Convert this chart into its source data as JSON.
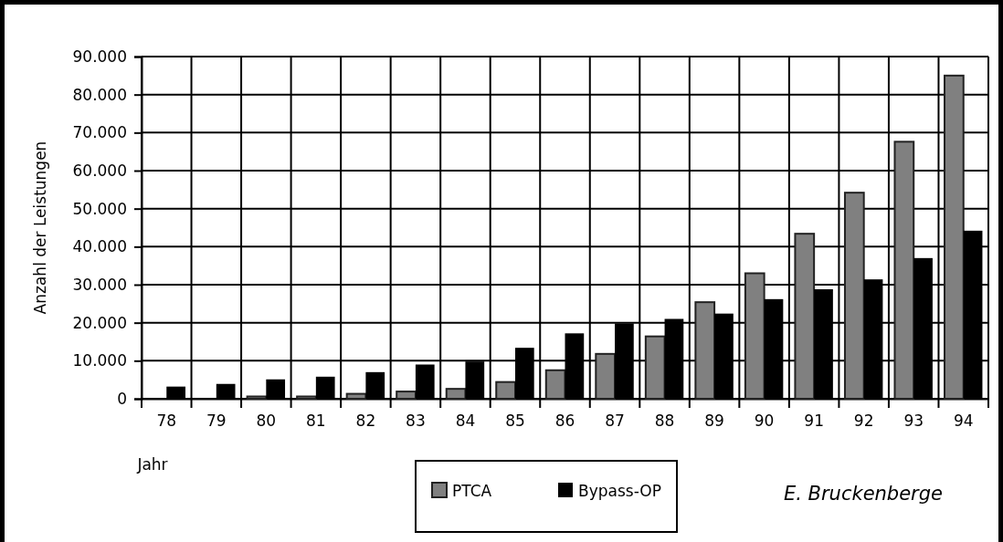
{
  "chart_data": {
    "type": "bar",
    "xlabel": "Jahr",
    "ylabel": "Anzahl der Leistungen",
    "categories": [
      "78",
      "79",
      "80",
      "81",
      "82",
      "83",
      "84",
      "85",
      "86",
      "87",
      "88",
      "89",
      "90",
      "91",
      "92",
      "93",
      "94"
    ],
    "series": [
      {
        "name": "PTCA",
        "color": "#808080",
        "values": [
          0,
          0,
          600,
          600,
          1300,
          1900,
          2600,
          4400,
          7500,
          11800,
          16400,
          25400,
          33000,
          43400,
          54200,
          67600,
          85000
        ]
      },
      {
        "name": "Bypass-OP",
        "color": "#000000",
        "values": [
          3200,
          3900,
          5100,
          5800,
          7000,
          9000,
          9800,
          13400,
          17200,
          19800,
          21000,
          22400,
          26200,
          28800,
          31400,
          37000,
          44200
        ]
      }
    ],
    "ylim": [
      0,
      90000
    ],
    "yticks": [
      {
        "value": 0,
        "label": "0"
      },
      {
        "value": 10000,
        "label": "10.000"
      },
      {
        "value": 20000,
        "label": "20.000"
      },
      {
        "value": 30000,
        "label": "30.000"
      },
      {
        "value": 40000,
        "label": "40.000"
      },
      {
        "value": 50000,
        "label": "50.000"
      },
      {
        "value": 60000,
        "label": "60.000"
      },
      {
        "value": 70000,
        "label": "70.000"
      },
      {
        "value": 80000,
        "label": "80.000"
      },
      {
        "value": 90000,
        "label": "90.000"
      }
    ],
    "grid": true,
    "legend": "bottom",
    "annotations": [
      "E. Bruckenberge"
    ]
  }
}
